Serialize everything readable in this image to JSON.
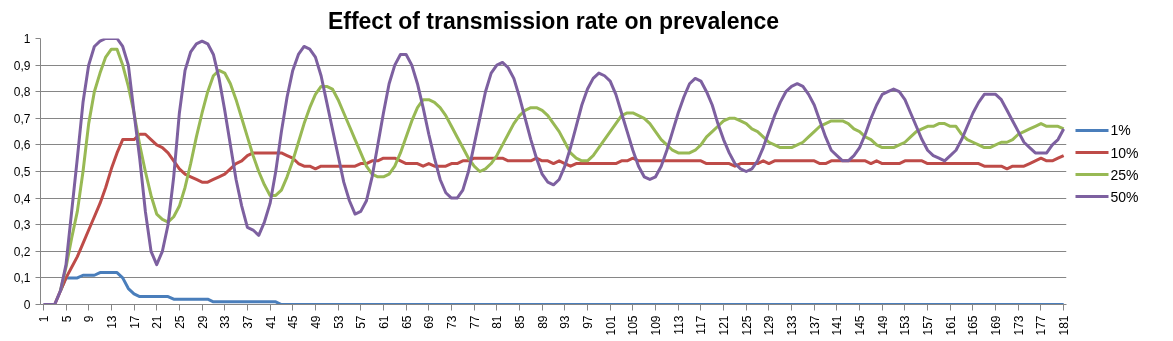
{
  "chart_data": {
    "type": "line",
    "title": "Effect of transmission rate on prevalence",
    "x": [
      1,
      2,
      3,
      4,
      5,
      6,
      7,
      8,
      9,
      10,
      11,
      12,
      13,
      14,
      15,
      16,
      17,
      18,
      19,
      20,
      21,
      22,
      23,
      24,
      25,
      26,
      27,
      28,
      29,
      30,
      31,
      32,
      33,
      34,
      35,
      36,
      37,
      38,
      39,
      40,
      41,
      42,
      43,
      44,
      45,
      46,
      47,
      48,
      49,
      50,
      51,
      52,
      53,
      54,
      55,
      56,
      57,
      58,
      59,
      60,
      61,
      62,
      63,
      64,
      65,
      66,
      67,
      68,
      69,
      70,
      71,
      72,
      73,
      74,
      75,
      76,
      77,
      78,
      79,
      80,
      81,
      82,
      83,
      84,
      85,
      86,
      87,
      88,
      89,
      90,
      91,
      92,
      93,
      94,
      95,
      96,
      97,
      98,
      99,
      100,
      101,
      102,
      103,
      104,
      105,
      106,
      107,
      108,
      109,
      110,
      111,
      112,
      113,
      114,
      115,
      116,
      117,
      118,
      119,
      120,
      121,
      122,
      123,
      124,
      125,
      126,
      127,
      128,
      129,
      130,
      131,
      132,
      133,
      134,
      135,
      136,
      137,
      138,
      139,
      140,
      141,
      142,
      143,
      144,
      145,
      146,
      147,
      148,
      149,
      150,
      151,
      152,
      153,
      154,
      155,
      156,
      157,
      158,
      159,
      160,
      161,
      162,
      163,
      164,
      165,
      166,
      167,
      168,
      169,
      170,
      171,
      172,
      173,
      174,
      175,
      176,
      177,
      178,
      179,
      180,
      181
    ],
    "series": [
      {
        "name": "1%",
        "color": "#4a7ebb",
        "x": [
          4,
          5,
          6,
          7,
          8,
          9,
          10,
          11,
          12,
          13,
          14,
          15,
          16,
          17,
          18,
          19,
          20,
          21,
          22,
          23,
          24,
          25,
          26,
          27,
          28,
          29,
          30,
          31,
          32,
          33,
          34,
          35,
          36,
          37,
          38,
          39,
          40,
          41,
          42,
          43,
          44,
          181
        ],
        "values": [
          0.05,
          0.1,
          0.1,
          0.1,
          0.11,
          0.11,
          0.11,
          0.12,
          0.12,
          0.12,
          0.12,
          0.1,
          0.06,
          0.04,
          0.03,
          0.03,
          0.03,
          0.03,
          0.03,
          0.03,
          0.02,
          0.02,
          0.02,
          0.02,
          0.02,
          0.02,
          0.02,
          0.01,
          0.01,
          0.01,
          0.01,
          0.01,
          0.01,
          0.01,
          0.01,
          0.01,
          0.01,
          0.01,
          0.01,
          0,
          0,
          0
        ]
      },
      {
        "name": "10%",
        "color": "#be4b48",
        "values": [
          null,
          null,
          0,
          0.05,
          0.1,
          0.14,
          0.18,
          0.23,
          0.28,
          0.33,
          0.38,
          0.44,
          0.51,
          0.57,
          0.62,
          0.62,
          0.62,
          0.64,
          0.64,
          0.62,
          0.6,
          0.59,
          0.57,
          0.54,
          0.51,
          0.49,
          0.48,
          0.47,
          0.46,
          0.46,
          0.47,
          0.48,
          0.49,
          0.51,
          0.53,
          0.54,
          0.56,
          0.57,
          0.57,
          0.57,
          0.57,
          0.57,
          0.57,
          0.56,
          0.55,
          0.53,
          0.52,
          0.52,
          0.51,
          0.52,
          0.52,
          0.52,
          0.52,
          0.52,
          0.52,
          0.52,
          0.53,
          0.53,
          0.54,
          0.54,
          0.55,
          0.55,
          0.55,
          0.54,
          0.53,
          0.53,
          0.53,
          0.52,
          0.53,
          0.52,
          0.52,
          0.52,
          0.53,
          0.53,
          0.54,
          0.54,
          0.55,
          0.55,
          0.55,
          0.55,
          0.55,
          0.55,
          0.54,
          0.54,
          0.54,
          0.54,
          0.54,
          0.55,
          0.54,
          0.54,
          0.53,
          0.54,
          0.53,
          0.52,
          0.53,
          0.53,
          0.53,
          0.53,
          0.53,
          0.53,
          0.53,
          0.53,
          0.54,
          0.54,
          0.55,
          0.54,
          0.54,
          0.54,
          0.54,
          0.54,
          0.54,
          0.54,
          0.54,
          0.54,
          0.54,
          0.54,
          0.54,
          0.53,
          0.53,
          0.53,
          0.53,
          0.53,
          0.52,
          0.53,
          0.53,
          0.53,
          0.53,
          0.54,
          0.53,
          0.54,
          0.54,
          0.54,
          0.54,
          0.54,
          0.54,
          0.54,
          0.54,
          0.53,
          0.53,
          0.54,
          0.54,
          0.54,
          0.54,
          0.54,
          0.54,
          0.54,
          0.53,
          0.54,
          0.53,
          0.53,
          0.53,
          0.53,
          0.54,
          0.54,
          0.54,
          0.54,
          0.53,
          0.53,
          0.53,
          0.53,
          0.53,
          0.53,
          0.53,
          0.53,
          0.53,
          0.53,
          0.52,
          0.52,
          0.52,
          0.52,
          0.51,
          0.52,
          0.52,
          0.52,
          0.53,
          0.54,
          0.55,
          0.54,
          0.54,
          0.55,
          0.56
        ]
      },
      {
        "name": "25%",
        "color": "#98b954",
        "values": [
          null,
          null,
          null,
          0.05,
          0.14,
          0.25,
          0.35,
          0.5,
          0.68,
          0.8,
          0.87,
          0.93,
          0.96,
          0.96,
          0.9,
          0.82,
          0.72,
          0.6,
          0.5,
          0.41,
          0.34,
          0.32,
          0.31,
          0.33,
          0.37,
          0.44,
          0.53,
          0.63,
          0.72,
          0.8,
          0.86,
          0.88,
          0.87,
          0.83,
          0.77,
          0.7,
          0.63,
          0.56,
          0.5,
          0.45,
          0.41,
          0.41,
          0.43,
          0.48,
          0.54,
          0.61,
          0.68,
          0.74,
          0.79,
          0.82,
          0.82,
          0.81,
          0.77,
          0.72,
          0.67,
          0.62,
          0.57,
          0.52,
          0.49,
          0.48,
          0.48,
          0.49,
          0.52,
          0.57,
          0.63,
          0.69,
          0.74,
          0.77,
          0.77,
          0.76,
          0.74,
          0.71,
          0.67,
          0.63,
          0.59,
          0.55,
          0.52,
          0.5,
          0.51,
          0.53,
          0.56,
          0.6,
          0.64,
          0.68,
          0.71,
          0.73,
          0.74,
          0.74,
          0.73,
          0.71,
          0.68,
          0.65,
          0.61,
          0.57,
          0.55,
          0.54,
          0.54,
          0.56,
          0.59,
          0.62,
          0.65,
          0.68,
          0.71,
          0.72,
          0.72,
          0.71,
          0.7,
          0.68,
          0.65,
          0.62,
          0.6,
          0.58,
          0.57,
          0.57,
          0.57,
          0.58,
          0.6,
          0.63,
          0.65,
          0.67,
          0.69,
          0.7,
          0.7,
          0.69,
          0.68,
          0.66,
          0.65,
          0.63,
          0.61,
          0.6,
          0.59,
          0.59,
          0.59,
          0.6,
          0.61,
          0.63,
          0.65,
          0.67,
          0.68,
          0.69,
          0.69,
          0.69,
          0.68,
          0.66,
          0.65,
          0.63,
          0.62,
          0.6,
          0.59,
          0.59,
          0.59,
          0.6,
          0.61,
          0.63,
          0.65,
          0.66,
          0.67,
          0.67,
          0.68,
          0.68,
          0.67,
          0.67,
          0.64,
          0.62,
          0.61,
          0.6,
          0.59,
          0.59,
          0.6,
          0.61,
          0.61,
          0.62,
          0.64,
          0.65,
          0.66,
          0.67,
          0.68,
          0.67,
          0.67,
          0.67,
          0.66
        ]
      },
      {
        "name": "50%",
        "color": "#7d60a0",
        "values": [
          0,
          0,
          0,
          0.05,
          0.15,
          0.35,
          0.55,
          0.76,
          0.9,
          0.97,
          0.99,
          1,
          1,
          1,
          0.97,
          0.9,
          0.72,
          0.55,
          0.35,
          0.2,
          0.15,
          0.2,
          0.3,
          0.48,
          0.72,
          0.88,
          0.95,
          0.98,
          0.99,
          0.98,
          0.94,
          0.85,
          0.73,
          0.6,
          0.47,
          0.37,
          0.29,
          0.28,
          0.26,
          0.31,
          0.38,
          0.5,
          0.65,
          0.78,
          0.88,
          0.94,
          0.97,
          0.96,
          0.93,
          0.86,
          0.76,
          0.66,
          0.56,
          0.46,
          0.39,
          0.34,
          0.35,
          0.39,
          0.48,
          0.6,
          0.72,
          0.83,
          0.9,
          0.94,
          0.94,
          0.9,
          0.83,
          0.74,
          0.64,
          0.55,
          0.47,
          0.42,
          0.4,
          0.4,
          0.43,
          0.5,
          0.6,
          0.7,
          0.8,
          0.87,
          0.9,
          0.91,
          0.89,
          0.85,
          0.78,
          0.7,
          0.62,
          0.55,
          0.49,
          0.46,
          0.45,
          0.47,
          0.52,
          0.59,
          0.67,
          0.75,
          0.81,
          0.85,
          0.87,
          0.86,
          0.84,
          0.79,
          0.72,
          0.65,
          0.58,
          0.52,
          0.48,
          0.47,
          0.48,
          0.52,
          0.58,
          0.65,
          0.72,
          0.78,
          0.83,
          0.85,
          0.84,
          0.8,
          0.75,
          0.68,
          0.62,
          0.57,
          0.53,
          0.51,
          0.5,
          0.51,
          0.54,
          0.59,
          0.65,
          0.71,
          0.76,
          0.8,
          0.82,
          0.83,
          0.82,
          0.79,
          0.75,
          0.69,
          0.63,
          0.58,
          0.56,
          0.54,
          0.54,
          0.56,
          0.59,
          0.64,
          0.7,
          0.75,
          0.79,
          0.8,
          0.81,
          0.8,
          0.77,
          0.72,
          0.67,
          0.62,
          0.58,
          0.56,
          0.55,
          0.54,
          0.56,
          0.58,
          0.62,
          0.67,
          0.72,
          0.76,
          0.79,
          0.79,
          0.79,
          0.77,
          0.73,
          0.69,
          0.65,
          0.61,
          0.59,
          0.57,
          0.57,
          0.57,
          0.6,
          0.62,
          0.66
        ]
      }
    ],
    "xlim": [
      0.5,
      181.5
    ],
    "xticks": [
      1,
      5,
      9,
      13,
      17,
      21,
      25,
      29,
      33,
      37,
      41,
      45,
      49,
      53,
      57,
      61,
      65,
      69,
      73,
      77,
      81,
      85,
      89,
      93,
      97,
      101,
      105,
      109,
      113,
      117,
      121,
      125,
      129,
      133,
      137,
      141,
      145,
      149,
      153,
      157,
      161,
      165,
      169,
      173,
      177,
      181
    ],
    "ylim": [
      0,
      1
    ],
    "yticks": [
      0,
      {
        "value": 0.1,
        "label": "0,1"
      },
      {
        "value": 0.2,
        "label": "0,2"
      },
      {
        "value": 0.3,
        "label": "0,3"
      },
      {
        "value": 0.4,
        "label": "0,4"
      },
      {
        "value": 0.5,
        "label": "0,5"
      },
      {
        "value": 0.6,
        "label": "0,6"
      },
      {
        "value": 0.7,
        "label": "0,7"
      },
      {
        "value": 0.8,
        "label": "0,8"
      },
      {
        "value": 0.9,
        "label": "0,9"
      },
      1
    ],
    "grid": "y",
    "legend": "right",
    "marker": "none",
    "line_style": "solid"
  }
}
